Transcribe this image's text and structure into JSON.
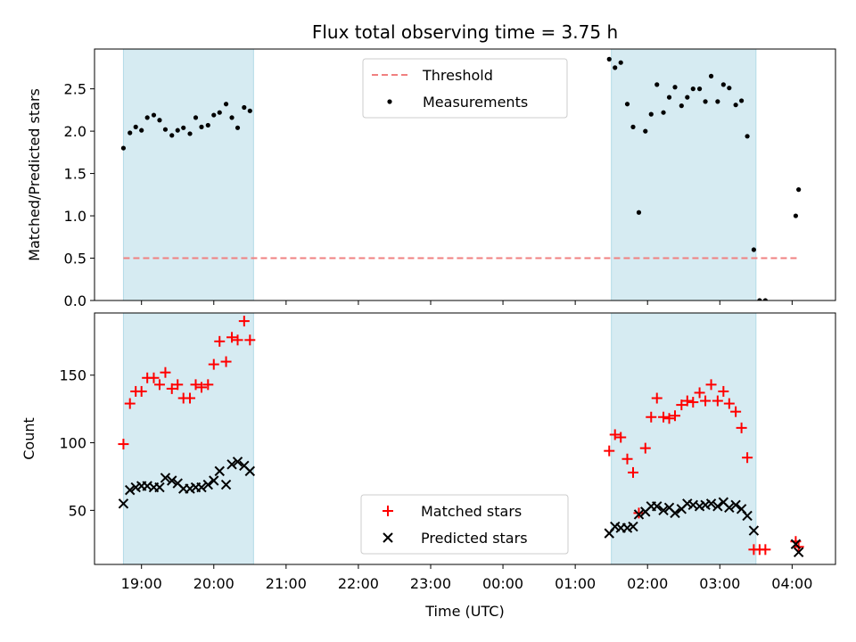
{
  "chart_data": [
    {
      "type": "scatter",
      "title": "Flux total observing time = 3.75 h",
      "ylabel": "Matched/Predicted stars",
      "xlim": [
        18.35,
        28.6
      ],
      "ylim": [
        0.0,
        2.97
      ],
      "yticks": [
        0.0,
        0.5,
        1.0,
        1.5,
        2.0,
        2.5
      ],
      "ytick_labels": [
        "0.0",
        "0.5",
        "1.0",
        "1.5",
        "2.0",
        "2.5"
      ],
      "shaded_intervals": [
        [
          18.75,
          20.55
        ],
        [
          25.5,
          27.5
        ]
      ],
      "shade_color": "#add8e6",
      "threshold": {
        "label": "Threshold",
        "y": 0.5,
        "x": [
          18.75,
          28.1
        ],
        "color": "#f08080"
      },
      "series": [
        {
          "name": "Measurements",
          "color": "#000000",
          "x": [
            18.75,
            18.84,
            18.92,
            19.0,
            19.08,
            19.17,
            19.25,
            19.33,
            19.42,
            19.5,
            19.58,
            19.67,
            19.75,
            19.83,
            19.92,
            20.0,
            20.08,
            20.17,
            20.25,
            20.33,
            20.42,
            20.5,
            25.47,
            25.55,
            25.63,
            25.72,
            25.8,
            25.88,
            25.97,
            26.05,
            26.13,
            26.22,
            26.3,
            26.38,
            26.47,
            26.55,
            26.63,
            26.72,
            26.8,
            26.88,
            26.97,
            27.05,
            27.13,
            27.22,
            27.3,
            27.38,
            27.47,
            27.55,
            27.63,
            28.05,
            28.09
          ],
          "y": [
            1.8,
            1.98,
            2.05,
            2.01,
            2.16,
            2.19,
            2.13,
            2.02,
            1.95,
            2.01,
            2.04,
            1.97,
            2.16,
            2.05,
            2.07,
            2.19,
            2.22,
            2.32,
            2.16,
            2.04,
            2.28,
            2.24,
            2.85,
            2.75,
            2.81,
            2.32,
            2.05,
            1.04,
            2.0,
            2.2,
            2.55,
            2.22,
            2.4,
            2.52,
            2.3,
            2.4,
            2.5,
            2.5,
            2.35,
            2.65,
            2.35,
            2.55,
            2.51,
            2.31,
            2.36,
            1.94,
            0.6,
            0.0,
            0.0,
            1.0,
            1.31
          ]
        }
      ]
    },
    {
      "type": "scatter",
      "xlabel": "Time (UTC)",
      "ylabel": "Count",
      "xlim": [
        18.35,
        28.6
      ],
      "ylim": [
        10,
        196
      ],
      "xticks": [
        19,
        20,
        21,
        22,
        23,
        24,
        25,
        26,
        27,
        28
      ],
      "xtick_labels": [
        "19:00",
        "20:00",
        "21:00",
        "22:00",
        "23:00",
        "00:00",
        "01:00",
        "02:00",
        "03:00",
        "04:00"
      ],
      "yticks": [
        50,
        100,
        150
      ],
      "ytick_labels": [
        "50",
        "100",
        "150"
      ],
      "shaded_intervals": [
        [
          18.75,
          20.55
        ],
        [
          25.5,
          27.5
        ]
      ],
      "shade_color": "#add8e6",
      "series": [
        {
          "name": "Matched stars",
          "marker": "+",
          "color": "#ff0000",
          "x": [
            18.75,
            18.84,
            18.92,
            19.0,
            19.08,
            19.17,
            19.25,
            19.33,
            19.42,
            19.5,
            19.58,
            19.67,
            19.75,
            19.83,
            19.92,
            20.0,
            20.08,
            20.17,
            20.25,
            20.33,
            20.42,
            20.5,
            25.47,
            25.55,
            25.63,
            25.72,
            25.8,
            25.88,
            25.97,
            26.05,
            26.13,
            26.22,
            26.3,
            26.38,
            26.47,
            26.55,
            26.63,
            26.72,
            26.8,
            26.88,
            26.97,
            27.05,
            27.13,
            27.22,
            27.3,
            27.38,
            27.47,
            27.55,
            27.63,
            28.05,
            28.09
          ],
          "y": [
            99,
            129,
            138,
            138,
            148,
            148,
            143,
            152,
            140,
            143,
            133,
            133,
            143,
            141,
            143,
            158,
            175,
            160,
            178,
            176,
            190,
            176,
            94,
            106,
            104,
            88,
            78,
            48,
            96,
            119,
            133,
            119,
            118,
            120,
            128,
            131,
            130,
            137,
            131,
            143,
            131,
            138,
            129,
            123,
            111,
            89,
            21,
            21,
            21,
            27,
            23
          ]
        },
        {
          "name": "Predicted stars",
          "marker": "x",
          "color": "#000000",
          "x": [
            18.75,
            18.84,
            18.92,
            19.0,
            19.08,
            19.17,
            19.25,
            19.33,
            19.42,
            19.5,
            19.58,
            19.67,
            19.75,
            19.83,
            19.92,
            20.0,
            20.08,
            20.17,
            20.25,
            20.33,
            20.42,
            20.5,
            25.47,
            25.55,
            25.63,
            25.72,
            25.8,
            25.88,
            25.97,
            26.05,
            26.13,
            26.22,
            26.3,
            26.38,
            26.47,
            26.55,
            26.63,
            26.72,
            26.8,
            26.88,
            26.97,
            27.05,
            27.13,
            27.22,
            27.3,
            27.38,
            27.47,
            28.05,
            28.09
          ],
          "y": [
            55,
            65,
            67,
            68,
            68,
            67,
            67,
            74,
            72,
            70,
            66,
            66,
            67,
            67,
            69,
            72,
            79,
            69,
            84,
            86,
            83,
            79,
            33,
            38,
            37,
            37,
            38,
            47,
            49,
            53,
            53,
            50,
            52,
            48,
            51,
            55,
            54,
            53,
            54,
            55,
            53,
            56,
            52,
            54,
            51,
            46,
            35,
            25,
            19
          ]
        }
      ]
    }
  ]
}
